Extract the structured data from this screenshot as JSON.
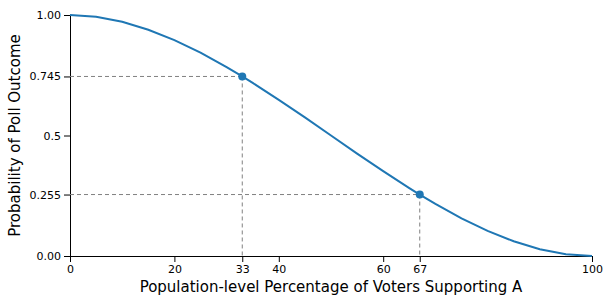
{
  "chart_data": {
    "type": "line",
    "x_label": "Population-level Percentage of Voters Supporting A",
    "y_label": "Probability of Poll Outcome",
    "x": [
      0,
      5,
      10,
      15,
      20,
      25,
      30,
      33,
      35,
      40,
      45,
      50,
      55,
      60,
      65,
      67,
      70,
      75,
      80,
      85,
      90,
      95,
      100
    ],
    "series": [
      {
        "type": "line",
        "color": "#1f77b4",
        "values": [
          1.0,
          0.993,
          0.972,
          0.939,
          0.896,
          0.844,
          0.784,
          0.745,
          0.718,
          0.648,
          0.575,
          0.5,
          0.425,
          0.352,
          0.282,
          0.255,
          0.216,
          0.156,
          0.104,
          0.061,
          0.028,
          0.007,
          0.0
        ]
      },
      {
        "type": "scatter",
        "color": "#1f77b4",
        "marker": "circle",
        "line_style": "dashed",
        "x": [
          33,
          67
        ],
        "values": [
          0.745,
          0.255
        ]
      }
    ],
    "xlim": [
      0,
      100
    ],
    "xticks": [
      0,
      20,
      33,
      40,
      60,
      67,
      100
    ],
    "ylim": [
      0,
      1
    ],
    "yticks": [
      {
        "value": 0,
        "label": "0.00"
      },
      0.255,
      0.5,
      0.745,
      {
        "value": 1,
        "label": "1.00"
      }
    ],
    "grid": false
  }
}
